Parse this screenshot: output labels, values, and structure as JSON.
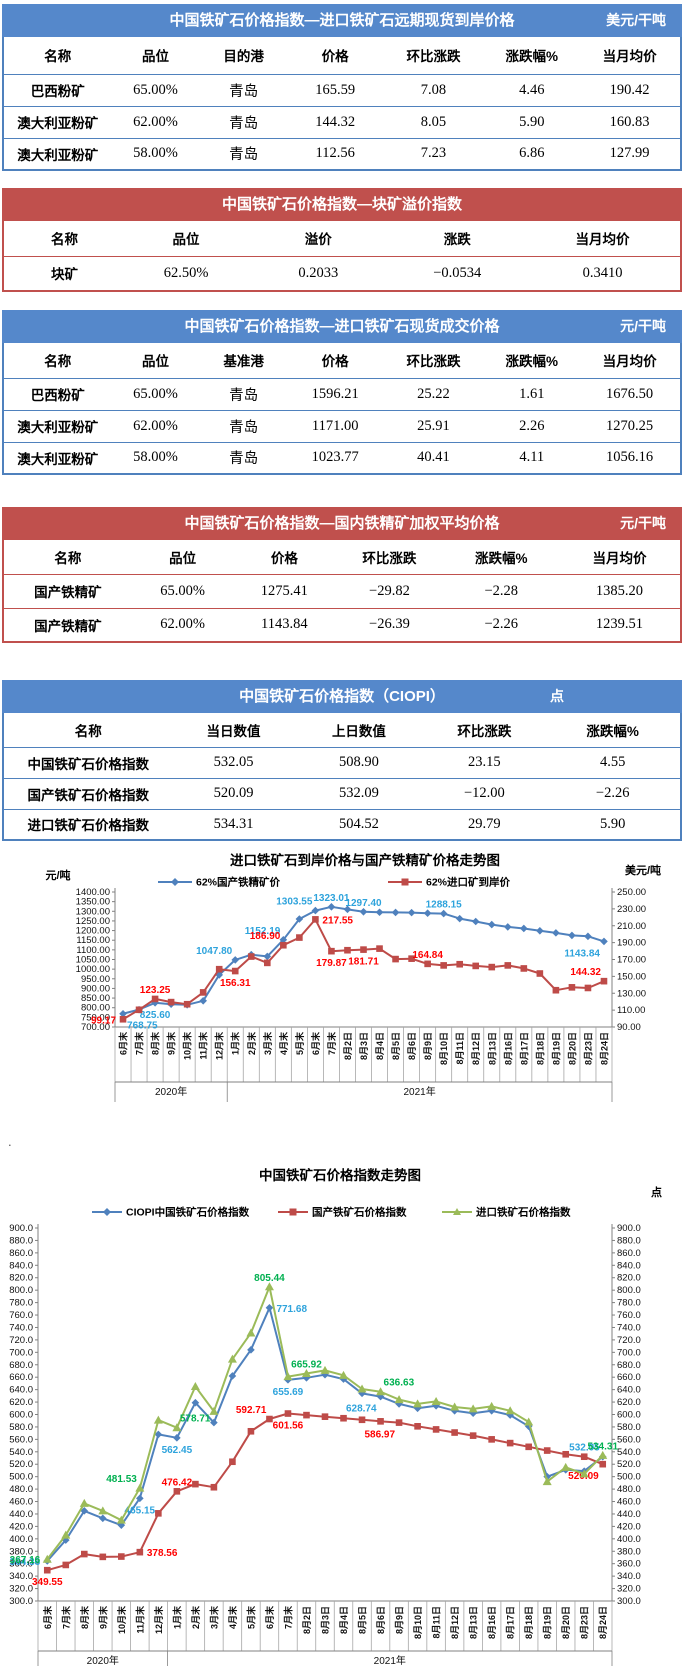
{
  "page": {
    "background": "#FFFFFF",
    "artifact_dot": "."
  },
  "colors": {
    "blue_header": "#5588CB",
    "blue_border": "#4F81BD",
    "red_header": "#C0504D",
    "red_border": "#C0504D",
    "series_blue": "#4F81BD",
    "series_red": "#BE4B48",
    "series_green": "#9BBB59",
    "label_blue": "#2EA3DC",
    "label_red": "#FF0000",
    "label_green": "#00B050"
  },
  "tables": [
    {
      "theme": "blue",
      "title": "中国铁矿石价格指数—进口铁矿石远期现货到岸价格",
      "unit": "美元/干吨",
      "columns": [
        "名称",
        "品位",
        "目的港",
        "价格",
        "环比涨跌",
        "涨跌幅%",
        "当月均价"
      ],
      "rows": [
        [
          "巴西粉矿",
          "65.00%",
          "青岛",
          "165.59",
          "7.08",
          "4.46",
          "190.42"
        ],
        [
          "澳大利亚粉矿",
          "62.00%",
          "青岛",
          "144.32",
          "8.05",
          "5.90",
          "160.83"
        ],
        [
          "澳大利亚粉矿",
          "58.00%",
          "青岛",
          "112.56",
          "7.23",
          "6.86",
          "127.99"
        ]
      ]
    },
    {
      "theme": "red",
      "title": "中国铁矿石价格指数—块矿溢价指数",
      "unit": "",
      "columns": [
        "名称",
        "品位",
        "溢价",
        "涨跌",
        "当月均价"
      ],
      "rows": [
        [
          "块矿",
          "62.50%",
          "0.2033",
          "−0.0534",
          "0.3410"
        ]
      ]
    },
    {
      "theme": "blue",
      "title": "中国铁矿石价格指数—进口铁矿石现货成交价格",
      "unit": "元/干吨",
      "columns": [
        "名称",
        "品位",
        "基准港",
        "价格",
        "环比涨跌",
        "涨跌幅%",
        "当月均价"
      ],
      "rows": [
        [
          "巴西粉矿",
          "65.00%",
          "青岛",
          "1596.21",
          "25.22",
          "1.61",
          "1676.50"
        ],
        [
          "澳大利亚粉矿",
          "62.00%",
          "青岛",
          "1171.00",
          "25.91",
          "2.26",
          "1270.25"
        ],
        [
          "澳大利亚粉矿",
          "58.00%",
          "青岛",
          "1023.77",
          "40.41",
          "4.11",
          "1056.16"
        ]
      ]
    },
    {
      "theme": "red",
      "title": "中国铁矿石价格指数—国内铁精矿加权平均价格",
      "unit": "元/干吨",
      "columns": [
        "名称",
        "品位",
        "价格",
        "环比涨跌",
        "涨跌幅%",
        "当月均价"
      ],
      "rows": [
        [
          "国产铁精矿",
          "65.00%",
          "1275.41",
          "−29.82",
          "−2.28",
          "1385.20"
        ],
        [
          "国产铁精矿",
          "62.00%",
          "1143.84",
          "−26.39",
          "−2.26",
          "1239.51"
        ]
      ]
    },
    {
      "theme": "blue",
      "title": "中国铁矿石价格指数（CIOPI）",
      "unit": "点",
      "columns": [
        "名称",
        "当日数值",
        "上日数值",
        "环比涨跌",
        "涨跌幅%"
      ],
      "rows": [
        [
          "中国铁矿石价格指数",
          "532.05",
          "508.90",
          "23.15",
          "4.55"
        ],
        [
          "国产铁矿石价格指数",
          "520.09",
          "532.09",
          "−12.00",
          "−2.26"
        ],
        [
          "进口铁矿石价格指数",
          "534.31",
          "504.52",
          "29.79",
          "5.90"
        ]
      ]
    }
  ],
  "chart_data": [
    {
      "type": "line",
      "title": "进口铁矿石到岸价格与国产铁精矿价格走势图",
      "legend_position": "top",
      "grid": false,
      "left_axis": {
        "unit": "元/吨",
        "min": 700,
        "max": 1400,
        "step": 50,
        "decimals": 2
      },
      "right_axis": {
        "unit": "美元/吨",
        "min": 90,
        "max": 250,
        "step": 20,
        "decimals": 2
      },
      "categories": [
        "6月末",
        "7月末",
        "8月末",
        "9月末",
        "10月末",
        "11月末",
        "12月末",
        "1月末",
        "2月末",
        "3月末",
        "4月末",
        "5月末",
        "6月末",
        "7月末",
        "8月2日",
        "8月3日",
        "8月4日",
        "8月5日",
        "8月6日",
        "8月9日",
        "8月10日",
        "8月11日",
        "8月12日",
        "8月13日",
        "8月16日",
        "8月17日",
        "8月18日",
        "8月19日",
        "8月20日",
        "8月23日",
        "8月24日"
      ],
      "year_groups": [
        {
          "label": "2020年",
          "count": 7
        },
        {
          "label": "2021年",
          "count": 24
        }
      ],
      "series": [
        {
          "name": "62%国产铁精矿价",
          "axis": "left",
          "color": "#4F81BD",
          "marker": "diamond",
          "label_color": "#2EA3DC",
          "values": [
            768.75,
            790,
            825.6,
            818,
            815,
            836,
            970,
            1047.8,
            1075,
            1066,
            1152.19,
            1260,
            1303.55,
            1323.01,
            1310,
            1297.4,
            1295,
            1294,
            1293,
            1290,
            1288.15,
            1262,
            1247,
            1231,
            1219,
            1211,
            1199,
            1188,
            1175,
            1170.23,
            1143.84
          ],
          "labels": [
            {
              "i": 0,
              "text": "768.75",
              "pos": "below-right"
            },
            {
              "i": 2,
              "text": "825.60",
              "pos": "below"
            },
            {
              "i": 7,
              "text": "1047.80",
              "pos": "above-left"
            },
            {
              "i": 10,
              "text": "1152.19",
              "pos": "above-left"
            },
            {
              "i": 12,
              "text": "1303.55",
              "pos": "above-left"
            },
            {
              "i": 13,
              "text": "1323.01",
              "pos": "above"
            },
            {
              "i": 15,
              "text": "1297.40",
              "pos": "above"
            },
            {
              "i": 20,
              "text": "1288.15",
              "pos": "above"
            },
            {
              "i": 30,
              "text": "1143.84",
              "pos": "below-left"
            }
          ]
        },
        {
          "name": "62%进口矿到岸价",
          "axis": "right",
          "color": "#BE4B48",
          "marker": "square",
          "label_color": "#FF0000",
          "values": [
            99.17,
            110.4,
            123.25,
            119.5,
            117.0,
            131.0,
            158.5,
            156.31,
            173.5,
            166.0,
            186.9,
            196.0,
            217.55,
            179.87,
            181.0,
            181.71,
            182.9,
            170.5,
            171.0,
            164.84,
            163.0,
            164.4,
            162.4,
            161.0,
            163.0,
            159.4,
            153.4,
            133.6,
            137.0,
            136.27,
            144.32
          ],
          "labels": [
            {
              "i": 0,
              "text": "99.17",
              "pos": "left"
            },
            {
              "i": 2,
              "text": "123.25",
              "pos": "above"
            },
            {
              "i": 7,
              "text": "156.31",
              "pos": "below"
            },
            {
              "i": 10,
              "text": "186.90",
              "pos": "above-left"
            },
            {
              "i": 12,
              "text": "217.55",
              "pos": "right"
            },
            {
              "i": 13,
              "text": "179.87",
              "pos": "below"
            },
            {
              "i": 15,
              "text": "181.71",
              "pos": "below"
            },
            {
              "i": 19,
              "text": "164.84",
              "pos": "above"
            },
            {
              "i": 30,
              "text": "144.32",
              "pos": "above-left"
            }
          ]
        }
      ]
    },
    {
      "type": "line",
      "title": "中国铁矿石价格指数走势图",
      "unit_label": "点",
      "legend_position": "top",
      "grid": false,
      "left_axis": {
        "min": 300,
        "max": 900,
        "step": 20,
        "decimals": 1
      },
      "right_axis": {
        "min": 300,
        "max": 900,
        "step": 20,
        "decimals": 1
      },
      "categories": [
        "6月末",
        "7月末",
        "8月末",
        "9月末",
        "10月末",
        "11月末",
        "12月末",
        "1月末",
        "2月末",
        "3月末",
        "4月末",
        "5月末",
        "6月末",
        "7月末",
        "8月2日",
        "8月3日",
        "8月4日",
        "8月5日",
        "8月6日",
        "8月9日",
        "8月10日",
        "8月11日",
        "8月12日",
        "8月13日",
        "8月16日",
        "8月17日",
        "8月18日",
        "8月19日",
        "8月20日",
        "8月23日",
        "8月24日"
      ],
      "year_groups": [
        {
          "label": "2020年",
          "count": 7
        },
        {
          "label": "2021年",
          "count": 24
        }
      ],
      "series": [
        {
          "name": "CIOPI中国铁矿石价格指数",
          "axis": "left",
          "color": "#4F81BD",
          "marker": "diamond",
          "label_color": "#2EA3DC",
          "values": [
            364.36,
            398,
            445,
            433,
            422,
            465.15,
            568,
            562.45,
            619,
            587,
            662,
            704,
            771.68,
            655.69,
            659,
            664,
            657,
            634,
            628.74,
            617,
            610,
            614,
            606,
            602,
            606,
            599,
            581,
            500,
            511,
            508.9,
            532.05
          ],
          "labels": [
            {
              "i": 0,
              "text": "364.36",
              "pos": "left"
            },
            {
              "i": 5,
              "text": "465.15",
              "pos": "below"
            },
            {
              "i": 7,
              "text": "562.45",
              "pos": "below"
            },
            {
              "i": 12,
              "text": "771.68",
              "pos": "right"
            },
            {
              "i": 13,
              "text": "655.69",
              "pos": "below"
            },
            {
              "i": 18,
              "text": "628.74",
              "pos": "below-left"
            },
            {
              "i": 30,
              "text": "532.05",
              "pos": "above-left"
            }
          ]
        },
        {
          "name": "国产铁矿石价格指数",
          "axis": "left",
          "color": "#BE4B48",
          "marker": "square",
          "label_color": "#FF0000",
          "values": [
            349.55,
            358,
            375.5,
            371,
            371.5,
            378.56,
            441,
            476.42,
            488,
            483,
            524,
            573,
            592.71,
            601.56,
            599,
            596.5,
            594,
            591.5,
            589,
            586.97,
            581,
            576,
            571,
            566,
            560,
            554,
            548,
            542,
            536,
            532.09,
            520.09
          ],
          "labels": [
            {
              "i": 0,
              "text": "349.55",
              "pos": "below"
            },
            {
              "i": 5,
              "text": "378.56",
              "pos": "right"
            },
            {
              "i": 7,
              "text": "476.42",
              "pos": "above"
            },
            {
              "i": 12,
              "text": "592.71",
              "pos": "above-left"
            },
            {
              "i": 13,
              "text": "601.56",
              "pos": "below"
            },
            {
              "i": 19,
              "text": "586.97",
              "pos": "below-left"
            },
            {
              "i": 30,
              "text": "520.09",
              "pos": "below-left"
            }
          ]
        },
        {
          "name": "进口铁矿石价格指数",
          "axis": "left",
          "color": "#9BBB59",
          "marker": "triangle",
          "label_color": "#00B050",
          "values": [
            367.16,
            406,
            457,
            445,
            430,
            481.53,
            591,
            578.71,
            645,
            605,
            689,
            731,
            805.44,
            661,
            665.92,
            671,
            663,
            641,
            636.63,
            624,
            617,
            621,
            612,
            609,
            613,
            606,
            588,
            492,
            515,
            504.52,
            534.31
          ],
          "labels": [
            {
              "i": 0,
              "text": "367.16",
              "pos": "left"
            },
            {
              "i": 5,
              "text": "481.53",
              "pos": "above-left"
            },
            {
              "i": 7,
              "text": "578.71",
              "pos": "above-right"
            },
            {
              "i": 12,
              "text": "805.44",
              "pos": "above"
            },
            {
              "i": 14,
              "text": "665.92",
              "pos": "above"
            },
            {
              "i": 18,
              "text": "636.63",
              "pos": "above-right"
            },
            {
              "i": 30,
              "text": "534.31",
              "pos": "above"
            }
          ]
        }
      ]
    }
  ]
}
